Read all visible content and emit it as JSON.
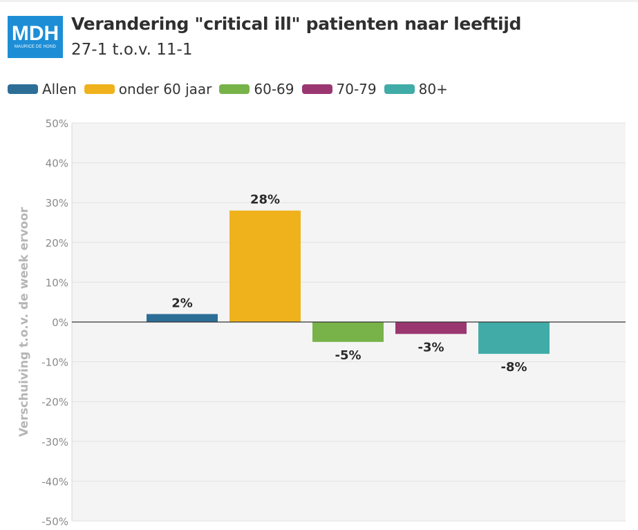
{
  "header": {
    "logo_text": "MDH",
    "logo_subtext": "MAURICE DE HOND",
    "title": "Verandering \"critical ill\" patienten naar leeftijd",
    "subtitle": "27-1 t.o.v. 11-1"
  },
  "colors": {
    "allen": "#2d6e97",
    "onder60": "#f0b21c",
    "g60_69": "#78b34a",
    "g70_79": "#9a3771",
    "g80plus": "#41aba8",
    "logo": "#1d8ed6",
    "plot_background": "#f4f4f4"
  },
  "chart_data": {
    "type": "bar",
    "title": "Verandering \"critical ill\" patienten naar leeftijd",
    "subtitle": "27-1 t.o.v. 11-1",
    "ylabel": "Verschuiving t.o.v. de week ervoor",
    "xlabel": "",
    "ylim": [
      -50,
      50
    ],
    "ytick_labels": [
      "50%",
      "40%",
      "30%",
      "20%",
      "10%",
      "0%",
      "-10%",
      "-20%",
      "-30%",
      "-40%",
      "-50%"
    ],
    "grid": true,
    "legend_position": "top-left",
    "unit": "%",
    "series": [
      {
        "name": "Allen",
        "value": 2,
        "label": "2%",
        "color": "#2d6e97"
      },
      {
        "name": "onder 60 jaar",
        "value": 28,
        "label": "28%",
        "color": "#f0b21c"
      },
      {
        "name": "60-69",
        "value": -5,
        "label": "-5%",
        "color": "#78b34a"
      },
      {
        "name": "70-79",
        "value": -3,
        "label": "-3%",
        "color": "#9a3771"
      },
      {
        "name": "80+",
        "value": -8,
        "label": "-8%",
        "color": "#41aba8"
      }
    ]
  }
}
